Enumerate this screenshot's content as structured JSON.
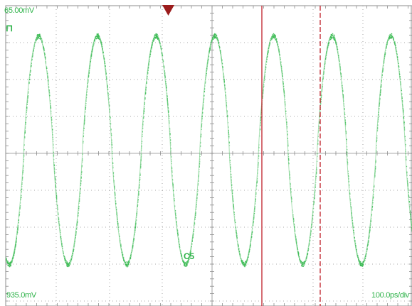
{
  "scope": {
    "top_voltage": "65.00mV",
    "bottom_voltage": "935.0mV",
    "timebase": "100.0ps/div",
    "channel": "C5",
    "ground_marker": "⊓",
    "colors": {
      "background": "#ffffff",
      "grid": "#8c8c8c",
      "trace": "#3dbb55",
      "cursor": "#c0202a",
      "trigger_marker": "#9b1c1c",
      "label": "#2fb34a"
    },
    "waveform": {
      "type": "sine",
      "cycles_visible": 7,
      "periods_per_div": 1.0
    }
  }
}
